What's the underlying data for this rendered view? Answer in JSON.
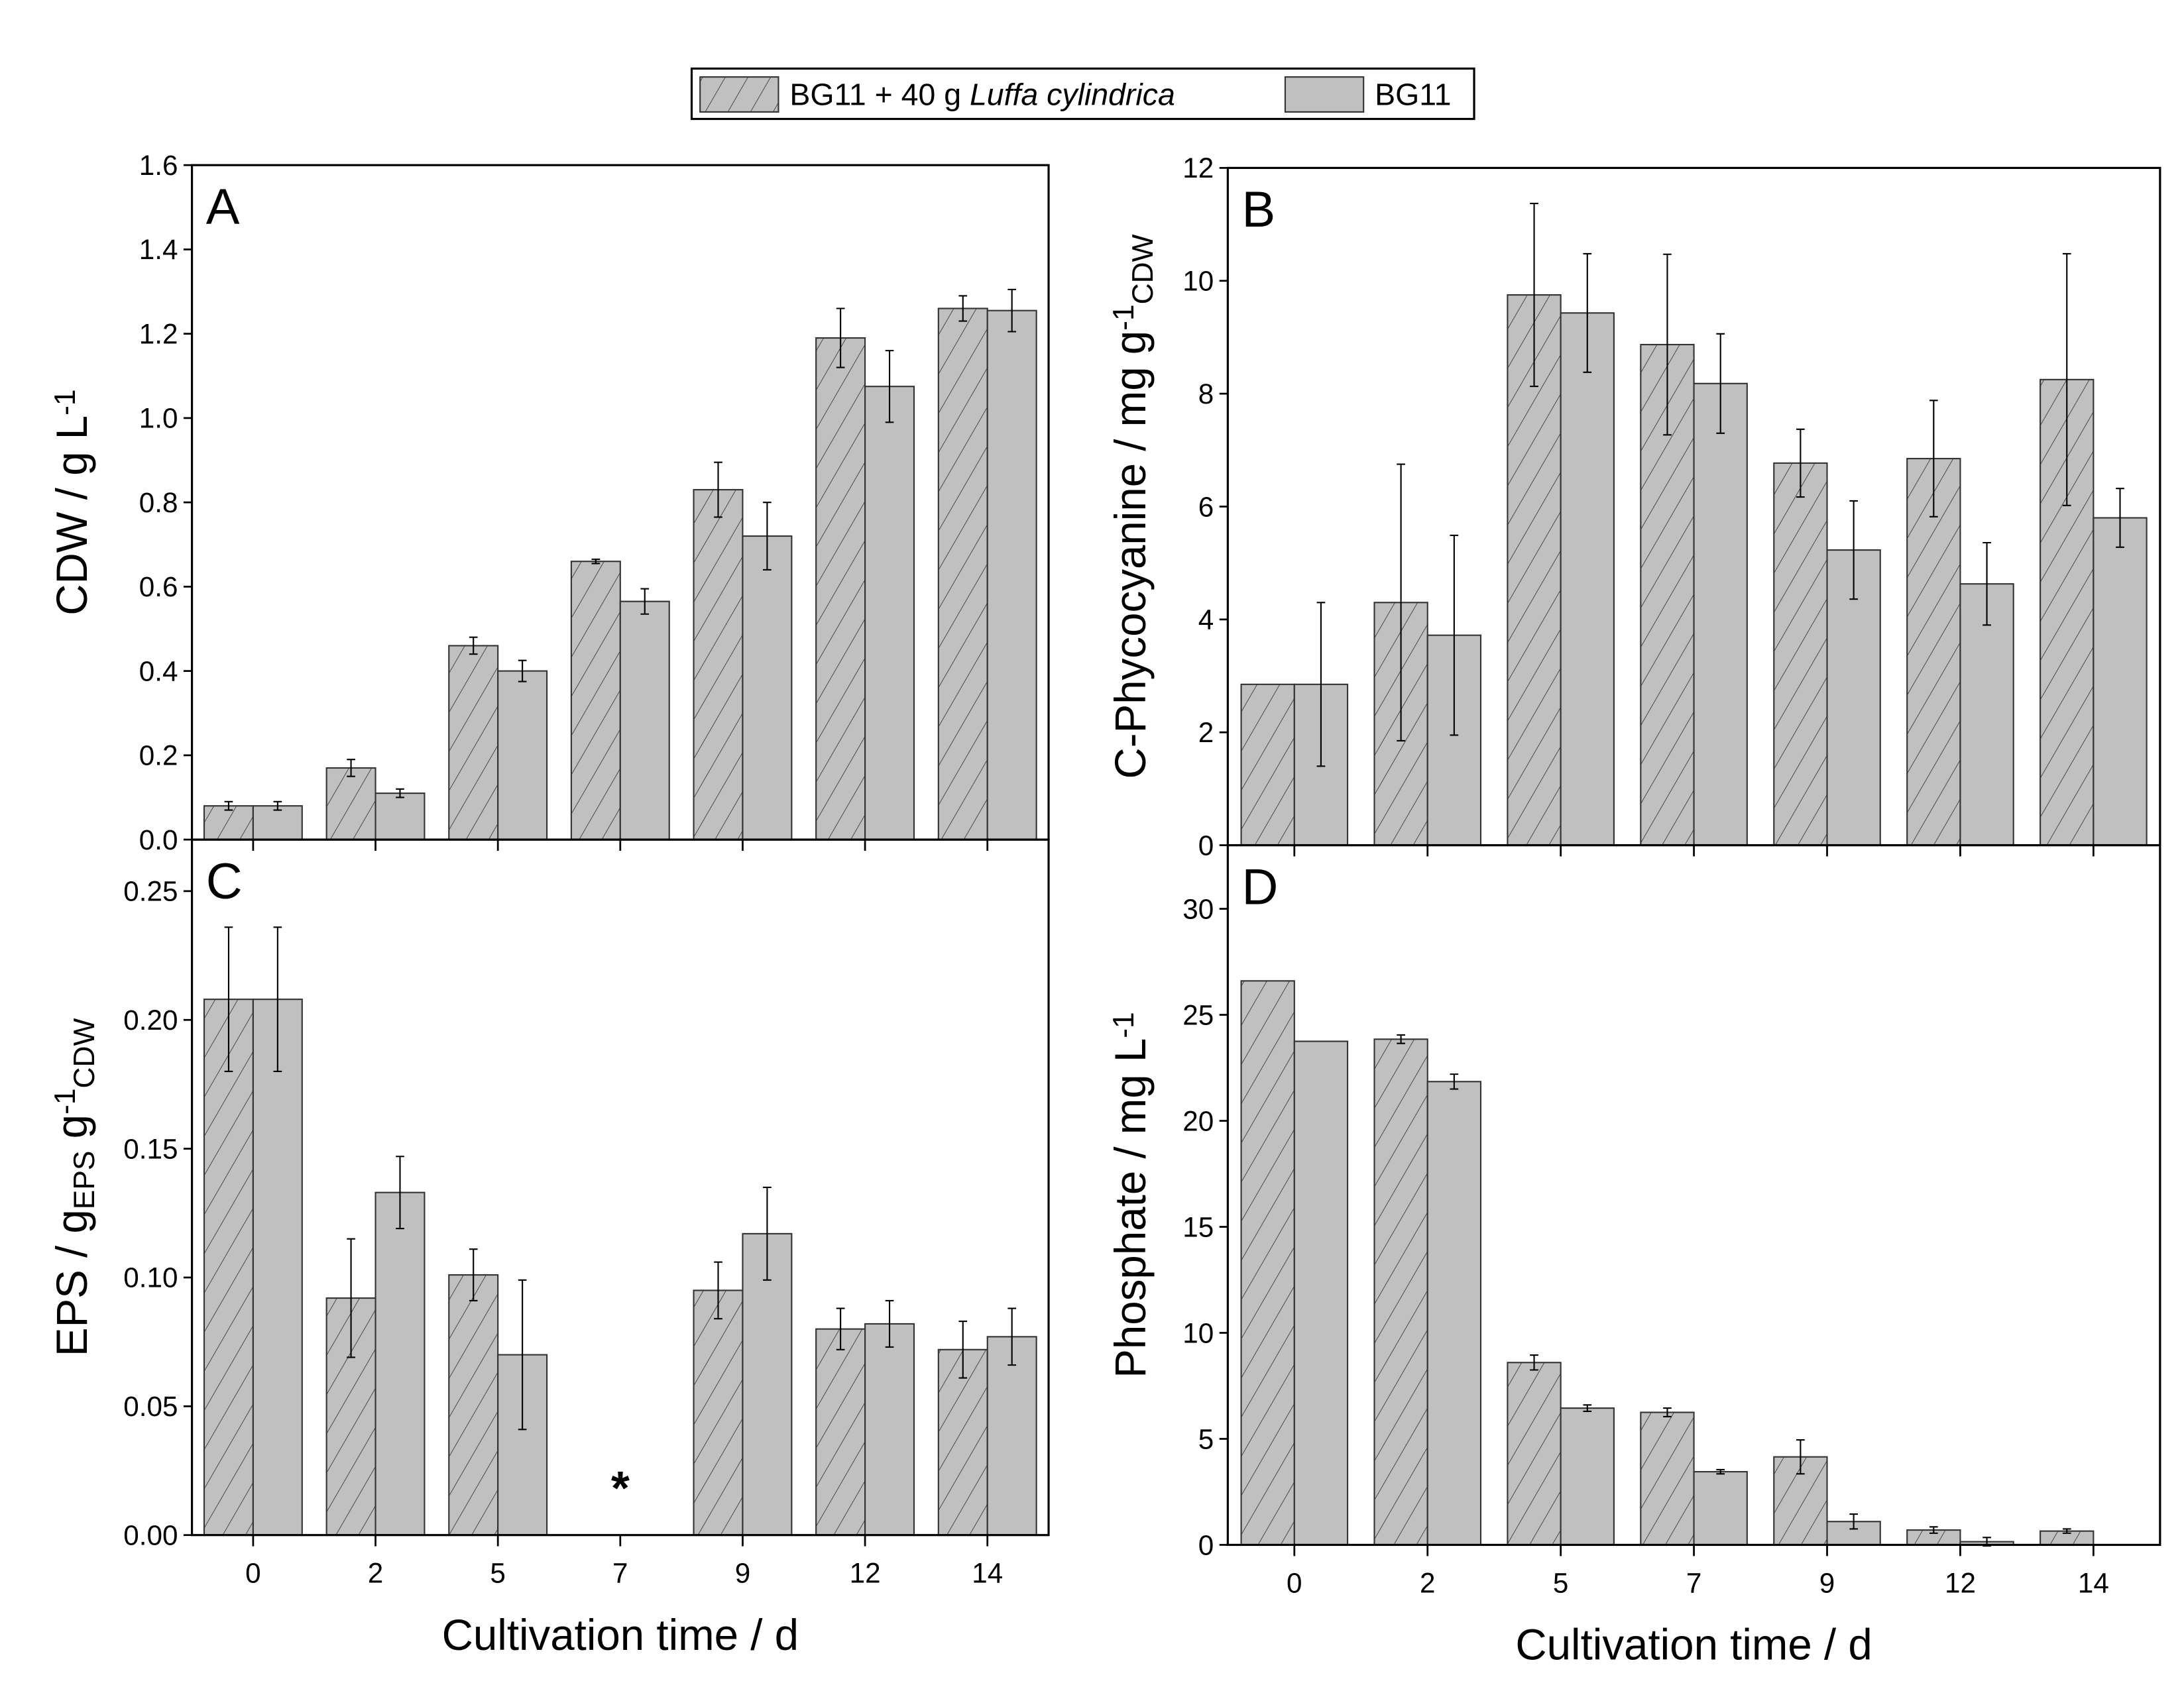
{
  "legend": {
    "items": [
      {
        "label_prefix": "BG11 + 40 g ",
        "label_italic": "Luffa cylindrica",
        "pattern": "hatched"
      },
      {
        "label": "BG11",
        "pattern": "solid"
      }
    ]
  },
  "colors": {
    "bar": "#c0c0c0",
    "hatch": "#333333",
    "axis": "#000000"
  },
  "chart_data": [
    {
      "type": "bar",
      "panel": "A",
      "categories": [
        "0",
        "2",
        "5",
        "7",
        "9",
        "12",
        "14"
      ],
      "ylim": [
        0,
        1.6
      ],
      "yticks": [
        "0.0",
        "0.2",
        "0.4",
        "0.6",
        "0.8",
        "1.0",
        "1.2",
        "1.4",
        "1.6"
      ],
      "ytick_step": 0.2,
      "ylabel": [
        {
          "t": "CDW / g L"
        },
        {
          "t": "-1",
          "s": "sup"
        }
      ],
      "xlabel": "",
      "show_xticklabels": false,
      "series": [
        {
          "name": "BG11 + 40 g Luffa cylindrica",
          "values": [
            0.08,
            0.17,
            0.46,
            0.66,
            0.83,
            1.19,
            1.26
          ],
          "errors": [
            0.01,
            0.02,
            0.02,
            0.005,
            0.065,
            0.07,
            0.03
          ]
        },
        {
          "name": "BG11",
          "values": [
            0.08,
            0.11,
            0.4,
            0.565,
            0.72,
            1.075,
            1.255
          ],
          "errors": [
            0.01,
            0.01,
            0.025,
            0.03,
            0.08,
            0.085,
            0.05
          ]
        }
      ],
      "annotations": []
    },
    {
      "type": "bar",
      "panel": "B",
      "categories": [
        "0",
        "2",
        "5",
        "7",
        "9",
        "12",
        "14"
      ],
      "ylim": [
        0,
        12
      ],
      "yticks": [
        "0",
        "2",
        "4",
        "6",
        "8",
        "10",
        "12"
      ],
      "ytick_step": 2,
      "ylabel": [
        {
          "t": "C-Phycocyanine / mg g"
        },
        {
          "t": "-1",
          "s": "sup"
        },
        {
          "t": "CDW",
          "s": "sub"
        }
      ],
      "xlabel": "",
      "show_xticklabels": false,
      "series": [
        {
          "name": "BG11 + 40 g Luffa cylindrica",
          "values": [
            2.85,
            4.3,
            9.75,
            8.87,
            6.77,
            6.85,
            8.25
          ],
          "errors": [
            0,
            2.45,
            1.62,
            1.6,
            0.6,
            1.03,
            2.23
          ]
        },
        {
          "name": "BG11",
          "values": [
            2.85,
            3.72,
            9.43,
            8.18,
            5.23,
            4.63,
            5.8
          ],
          "errors": [
            1.45,
            1.77,
            1.05,
            0.88,
            0.87,
            0.73,
            0.52
          ]
        }
      ],
      "annotations": []
    },
    {
      "type": "bar",
      "panel": "C",
      "categories": [
        "0",
        "2",
        "5",
        "7",
        "9",
        "12",
        "14"
      ],
      "ylim": [
        0,
        0.27
      ],
      "yticks": [
        "0.00",
        "0.05",
        "0.10",
        "0.15",
        "0.20",
        "0.25"
      ],
      "ytick_step": 0.05,
      "ylabel": [
        {
          "t": "EPS / g"
        },
        {
          "t": "EPS",
          "s": "sub"
        },
        {
          "t": " g"
        },
        {
          "t": "-1",
          "s": "sup"
        },
        {
          "t": "CDW",
          "s": "sub"
        }
      ],
      "xlabel": "Cultivation time / d",
      "show_xticklabels": true,
      "series": [
        {
          "name": "BG11 + 40 g Luffa cylindrica",
          "values": [
            0.208,
            0.092,
            0.101,
            null,
            0.095,
            0.08,
            0.072
          ],
          "errors": [
            0.028,
            0.023,
            0.01,
            null,
            0.011,
            0.008,
            0.011
          ]
        },
        {
          "name": "BG11",
          "values": [
            0.208,
            0.133,
            0.07,
            null,
            0.117,
            0.082,
            0.077
          ],
          "errors": [
            0.028,
            0.014,
            0.029,
            null,
            0.018,
            0.009,
            0.011
          ]
        }
      ],
      "annotations": [
        {
          "category": "7",
          "text": "*"
        }
      ]
    },
    {
      "type": "bar",
      "panel": "D",
      "categories": [
        "0",
        "2",
        "5",
        "7",
        "9",
        "12",
        "14"
      ],
      "ylim": [
        0,
        33
      ],
      "yticks": [
        "0",
        "5",
        "10",
        "15",
        "20",
        "25",
        "30"
      ],
      "ytick_step": 5,
      "ylabel": [
        {
          "t": "Phosphate / mg L"
        },
        {
          "t": "-1",
          "s": "sup"
        }
      ],
      "xlabel": "Cultivation time / d",
      "show_xticklabels": true,
      "series": [
        {
          "name": "BG11 + 40 g Luffa cylindrica",
          "values": [
            26.6,
            23.85,
            8.6,
            6.25,
            4.15,
            0.7,
            0.65
          ],
          "errors": [
            0,
            0.2,
            0.35,
            0.2,
            0.8,
            0.15,
            0.1
          ]
        },
        {
          "name": "BG11",
          "values": [
            23.75,
            21.85,
            6.45,
            3.45,
            1.1,
            0.15,
            null
          ],
          "errors": [
            0,
            0.35,
            0.15,
            0.1,
            0.35,
            0.2,
            null
          ]
        }
      ],
      "annotations": []
    }
  ]
}
